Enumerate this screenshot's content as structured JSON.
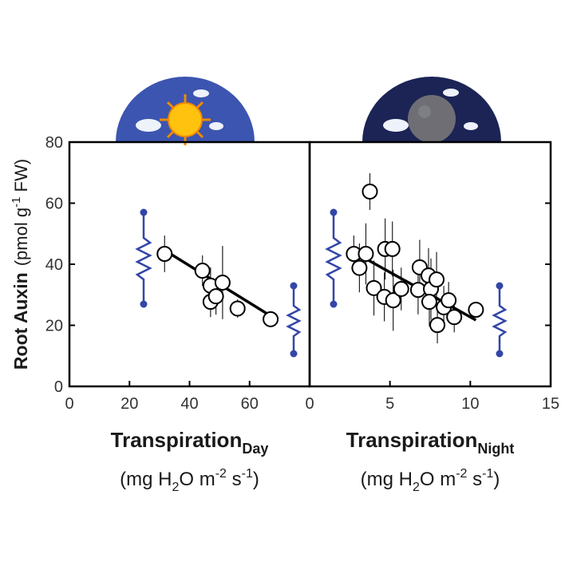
{
  "chart_data": [
    {
      "type": "scatter",
      "ylabel": "Root Auxin",
      "yunit_parts": [
        "(pmol g",
        "-1",
        " FW)"
      ],
      "xlabel": "Transpiration",
      "xlabel_sub": "Day",
      "xunit_parts": [
        "(mg H",
        "2",
        "O m",
        "-2",
        " s",
        "-1",
        ")"
      ],
      "x": [
        31.7,
        44.3,
        47,
        47,
        48.8,
        51,
        56,
        67
      ],
      "values": [
        43.4,
        37.9,
        33,
        27.7,
        29.5,
        34,
        25.5,
        22
      ],
      "errors": [
        6,
        5,
        6,
        5,
        6,
        12,
        3,
        2
      ],
      "fit": {
        "x": [
          31.5,
          68.8
        ],
        "y": [
          44.7,
          22
        ]
      },
      "xlim": [
        0,
        80
      ],
      "xticks": [
        0,
        20,
        40,
        60
      ],
      "ylim": [
        0,
        80
      ],
      "yticks": [
        0,
        20,
        40,
        60,
        80
      ]
    },
    {
      "type": "scatter",
      "xlabel": "Transpiration",
      "xlabel_sub": "Night",
      "xunit_parts": [
        "(mg H",
        "2",
        "O m",
        "-2",
        " s",
        "-1",
        ")"
      ],
      "x": [
        2.75,
        3.1,
        3.5,
        3.75,
        4.0,
        4.7,
        5.15,
        4.65,
        5.2,
        5.7,
        6.85,
        6.75,
        7.4,
        7.55,
        7.45,
        7.9,
        7.95,
        8.35,
        8.65,
        9.0,
        10.35
      ],
      "values": [
        43.4,
        38.8,
        43.4,
        63.8,
        32.2,
        45,
        45,
        29.3,
        28.2,
        31.9,
        39,
        31.6,
        36.3,
        31.9,
        27.7,
        35,
        20.1,
        25.9,
        28.2,
        22.7,
        25.1
      ],
      "errors": [
        6,
        8,
        10,
        6,
        9,
        10,
        9,
        8,
        10,
        7,
        9,
        8,
        9,
        10,
        8,
        9,
        6,
        7,
        6,
        5,
        2
      ],
      "fit": {
        "x": [
          2.5,
          10.35
        ],
        "y": [
          44.7,
          21.7
        ]
      },
      "xlim": [
        0,
        15
      ],
      "xticks": [
        0,
        5,
        10,
        15
      ],
      "ylim": [
        0,
        80
      ]
    }
  ]
}
